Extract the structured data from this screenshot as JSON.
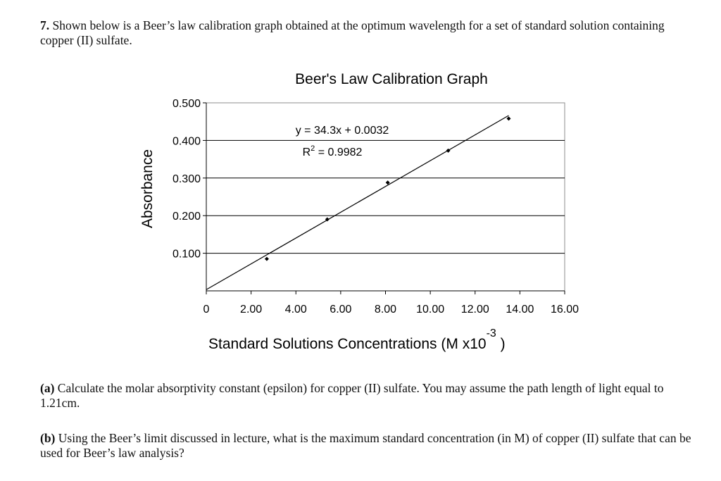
{
  "question": {
    "number": "7.",
    "text": "Shown below is a Beer’s law calibration graph obtained at the optimum wavelength for a set of standard solution containing copper (II) sulfate."
  },
  "chart_data": {
    "type": "scatter",
    "title": "Beer's Law Calibration Graph",
    "xlabel": "Standard Solutions Concentrations (M  x10",
    "xlabel_exponent": "-3",
    "xlabel_close": " )",
    "ylabel": "Absorbance",
    "xlim": [
      0,
      16
    ],
    "ylim": [
      0,
      0.5
    ],
    "x_ticks": [
      0,
      2,
      4,
      6,
      8,
      10,
      12,
      14,
      16
    ],
    "x_tick_labels": [
      "0",
      "2.00",
      "4.00",
      "6.00",
      "8.00",
      "10.00",
      "12.00",
      "14.00",
      "16.00"
    ],
    "y_ticks": [
      0.1,
      0.2,
      0.3,
      0.4,
      0.5
    ],
    "y_tick_labels": [
      "0.100",
      "0.200",
      "0.300",
      "0.400",
      "0.500"
    ],
    "grid": "horizontal",
    "points": [
      {
        "x": 2.7,
        "y": 0.085
      },
      {
        "x": 5.4,
        "y": 0.19
      },
      {
        "x": 8.1,
        "y": 0.288
      },
      {
        "x": 10.8,
        "y": 0.373
      },
      {
        "x": 13.5,
        "y": 0.458
      }
    ],
    "trendline": {
      "slope": 34.3,
      "intercept": 0.0032,
      "x_range": [
        0,
        13.5
      ]
    },
    "equation": "y = 34.3x + 0.0032",
    "r2_label": "R",
    "r2_exponent": "2",
    "r2_value": " = 0.9982"
  },
  "part_a": {
    "label": "(a)",
    "text": " Calculate the molar absorptivity constant (epsilon) for copper (II) sulfate. You may assume the path length of light equal to 1.21cm."
  },
  "part_b": {
    "label": "(b)",
    "text": " Using the Beer’s limit discussed in lecture, what is the maximum standard concentration (in M) of copper (II) sulfate that can be used for Beer’s law analysis?"
  }
}
